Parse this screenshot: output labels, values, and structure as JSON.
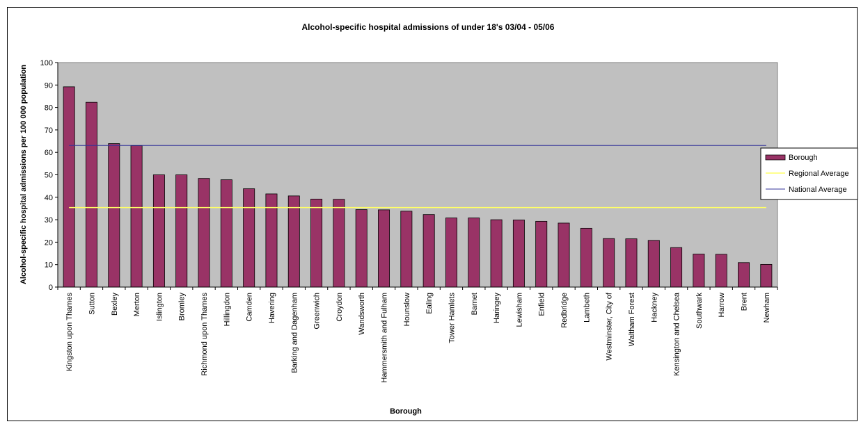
{
  "chart_data": {
    "type": "bar",
    "title": "Alcohol-specific hospital admissions of under 18's 03/04 - 05/06",
    "xlabel": "Borough",
    "ylabel": "Alcohol-specific hospital admissions per 100 000 population",
    "ylim": [
      0,
      100
    ],
    "yticks": [
      0,
      10,
      20,
      30,
      40,
      50,
      60,
      70,
      80,
      90,
      100
    ],
    "categories": [
      "Kingston upon Thames",
      "Sutton",
      "Bexley",
      "Merton",
      "Islington",
      "Bromley",
      "Richmond upon Thames",
      "Hillingdon",
      "Camden",
      "Havering",
      "Barking and Dagenham",
      "Greenwich",
      "Croydon",
      "Wandsworth",
      "Hammersmith and Fulham",
      "Hounslow",
      "Ealing",
      "Tower Hamlets",
      "Barnet",
      "Haringey",
      "Lewisham",
      "Enfield",
      "Redbridge",
      "Lambeth",
      "Westminster, City of",
      "Waltham Forest",
      "Hackney",
      "Kensington and Chelsea",
      "Southwark",
      "Harrow",
      "Brent",
      "Newham"
    ],
    "series": [
      {
        "name": "Borough",
        "kind": "bar",
        "color": "#993366",
        "values": [
          89.2,
          82.3,
          63.9,
          63.0,
          50.0,
          50.0,
          48.4,
          47.8,
          43.8,
          41.5,
          40.6,
          39.2,
          39.1,
          34.5,
          34.4,
          33.8,
          32.3,
          30.8,
          30.8,
          30.0,
          29.9,
          29.3,
          28.5,
          26.2,
          21.6,
          21.5,
          20.8,
          17.6,
          14.7,
          14.6,
          10.9,
          10.1
        ]
      },
      {
        "name": "Regional Average",
        "kind": "line",
        "color": "#FFFF66",
        "value": 35.4
      },
      {
        "name": "National Average",
        "kind": "line",
        "color": "#333399",
        "value": 63.1
      }
    ],
    "plot_background": "#C0C0C0",
    "grid": false,
    "legend_position": "right"
  }
}
